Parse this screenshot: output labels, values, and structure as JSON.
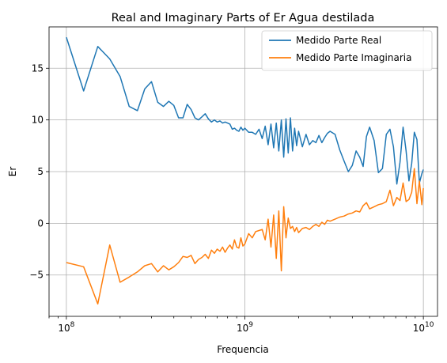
{
  "chart_data": {
    "type": "line",
    "title": "Real and Imaginary Parts of Er Agua destilada",
    "xlabel": "Frequencia",
    "ylabel": "Er",
    "xscale": "log",
    "xlim": [
      80000000,
      12000000000
    ],
    "ylim": [
      -9,
      19
    ],
    "grid": true,
    "legend_position": "top-right",
    "x_ticks": [
      {
        "value": 100000000,
        "base": "10",
        "exp": "8"
      },
      {
        "value": 1000000000,
        "base": "10",
        "exp": "9"
      },
      {
        "value": 10000000000,
        "base": "10",
        "exp": "10"
      }
    ],
    "y_ticks": [
      {
        "value": -5,
        "label": "−5"
      },
      {
        "value": 0,
        "label": "0"
      },
      {
        "value": 5,
        "label": "5"
      },
      {
        "value": 10,
        "label": "10"
      },
      {
        "value": 15,
        "label": "15"
      }
    ],
    "series": [
      {
        "name": "Medido Parte Real",
        "color": "#1f77b4",
        "x": [
          100000000,
          125000000,
          150000000,
          175000000,
          200000000,
          225000000,
          250000000,
          275000000,
          300000000,
          325000000,
          350000000,
          375000000,
          400000000,
          425000000,
          450000000,
          475000000,
          500000000,
          525000000,
          550000000,
          575000000,
          600000000,
          625000000,
          650000000,
          675000000,
          700000000,
          725000000,
          750000000,
          775000000,
          800000000,
          825000000,
          850000000,
          875000000,
          900000000,
          925000000,
          950000000,
          975000000,
          1000000000,
          1050000000,
          1100000000,
          1150000000,
          1200000000,
          1250000000,
          1300000000,
          1350000000,
          1400000000,
          1450000000,
          1500000000,
          1550000000,
          1600000000,
          1650000000,
          1700000000,
          1750000000,
          1800000000,
          1850000000,
          1900000000,
          1950000000,
          2000000000,
          2100000000,
          2200000000,
          2300000000,
          2400000000,
          2500000000,
          2600000000,
          2700000000,
          2800000000,
          2900000000,
          3000000000,
          3200000000,
          3400000000,
          3600000000,
          3800000000,
          4000000000,
          4200000000,
          4400000000,
          4600000000,
          4800000000,
          5000000000,
          5300000000,
          5600000000,
          5900000000,
          6200000000,
          6500000000,
          6800000000,
          7100000000,
          7400000000,
          7700000000,
          8000000000,
          8300000000,
          8600000000,
          8900000000,
          9200000000,
          9500000000,
          9800000000,
          10000000000
        ],
        "y": [
          18.0,
          12.8,
          17.1,
          15.9,
          14.2,
          11.3,
          10.9,
          13.0,
          13.7,
          11.7,
          11.3,
          11.8,
          11.4,
          10.2,
          10.2,
          11.5,
          11.0,
          10.2,
          10.0,
          10.3,
          10.6,
          10.1,
          9.8,
          10.0,
          9.8,
          9.9,
          9.7,
          9.8,
          9.7,
          9.6,
          9.1,
          9.2,
          9.0,
          8.9,
          9.3,
          9.0,
          9.2,
          8.8,
          8.8,
          8.6,
          9.1,
          8.2,
          9.4,
          7.6,
          9.6,
          7.3,
          9.7,
          7.0,
          10.0,
          6.4,
          10.1,
          6.8,
          10.2,
          7.0,
          9.2,
          7.5,
          8.9,
          7.4,
          8.6,
          7.6,
          8.0,
          7.8,
          8.5,
          7.8,
          8.3,
          8.7,
          8.9,
          8.6,
          7.1,
          6.0,
          5.0,
          5.6,
          7.0,
          6.4,
          5.5,
          8.4,
          9.3,
          8.0,
          4.9,
          5.3,
          8.6,
          9.1,
          7.4,
          3.8,
          5.9,
          9.3,
          7.0,
          4.1,
          5.8,
          8.8,
          8.1,
          3.9,
          4.8,
          5.2
        ]
      },
      {
        "name": "Medido Parte Imaginaria",
        "color": "#ff7f0e",
        "x": [
          100000000,
          125000000,
          150000000,
          175000000,
          200000000,
          225000000,
          250000000,
          275000000,
          300000000,
          325000000,
          350000000,
          375000000,
          400000000,
          425000000,
          450000000,
          475000000,
          500000000,
          525000000,
          550000000,
          575000000,
          600000000,
          625000000,
          650000000,
          675000000,
          700000000,
          725000000,
          750000000,
          775000000,
          800000000,
          825000000,
          850000000,
          875000000,
          900000000,
          925000000,
          950000000,
          975000000,
          1000000000,
          1050000000,
          1100000000,
          1150000000,
          1200000000,
          1250000000,
          1300000000,
          1350000000,
          1400000000,
          1450000000,
          1500000000,
          1550000000,
          1600000000,
          1650000000,
          1700000000,
          1750000000,
          1800000000,
          1850000000,
          1900000000,
          1950000000,
          2000000000,
          2100000000,
          2200000000,
          2300000000,
          2400000000,
          2500000000,
          2600000000,
          2700000000,
          2800000000,
          2900000000,
          3000000000,
          3200000000,
          3400000000,
          3600000000,
          3800000000,
          4000000000,
          4200000000,
          4400000000,
          4600000000,
          4800000000,
          5000000000,
          5300000000,
          5600000000,
          5900000000,
          6200000000,
          6500000000,
          6800000000,
          7100000000,
          7400000000,
          7700000000,
          8000000000,
          8300000000,
          8600000000,
          8900000000,
          9200000000,
          9500000000,
          9800000000,
          10000000000
        ],
        "y": [
          -3.8,
          -4.2,
          -7.8,
          -2.1,
          -5.7,
          -5.2,
          -4.7,
          -4.1,
          -3.9,
          -4.7,
          -4.1,
          -4.5,
          -4.2,
          -3.8,
          -3.2,
          -3.3,
          -3.1,
          -3.9,
          -3.5,
          -3.3,
          -3.0,
          -3.4,
          -2.6,
          -2.9,
          -2.5,
          -2.7,
          -2.3,
          -2.8,
          -2.4,
          -2.1,
          -2.5,
          -1.6,
          -2.3,
          -2.4,
          -1.4,
          -2.2,
          -2.0,
          -1.0,
          -1.4,
          -0.8,
          -0.7,
          -0.6,
          -1.6,
          0.4,
          -2.3,
          0.8,
          -3.4,
          1.2,
          -4.6,
          1.6,
          -1.4,
          0.5,
          -0.5,
          -0.3,
          -0.8,
          -0.4,
          -0.9,
          -0.5,
          -0.4,
          -0.6,
          -0.3,
          -0.1,
          -0.3,
          0.1,
          -0.1,
          0.3,
          0.2,
          0.4,
          0.6,
          0.7,
          0.9,
          1.0,
          1.2,
          1.1,
          1.7,
          2.0,
          1.4,
          1.6,
          1.8,
          1.9,
          2.1,
          3.2,
          1.7,
          2.5,
          2.2,
          3.9,
          2.1,
          2.3,
          3.0,
          5.3,
          1.9,
          4.1,
          1.8,
          3.4
        ]
      }
    ]
  }
}
